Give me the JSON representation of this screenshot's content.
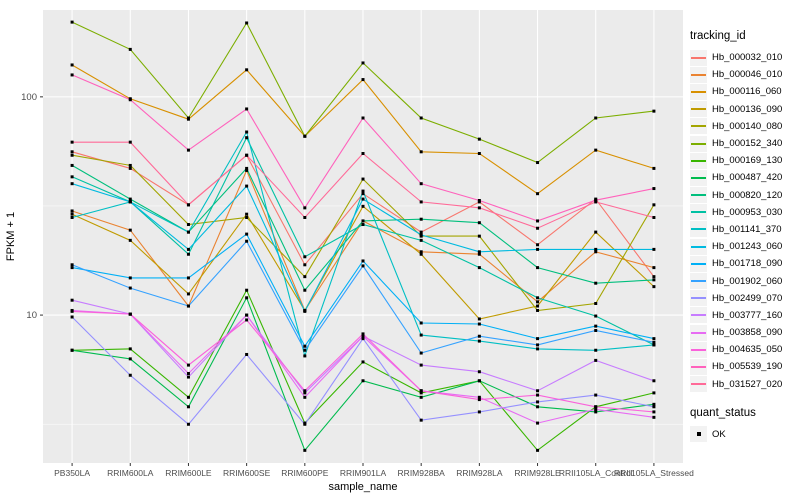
{
  "figure": {
    "y_axis": {
      "title": "FPKM + 1",
      "tick_labels": [
        "100",
        "10"
      ],
      "tick_values": [
        100,
        10
      ]
    },
    "x_axis": {
      "title": "sample_name"
    },
    "legend": {
      "title": "tracking_id",
      "quant_title": "quant_status",
      "quant_items": [
        {
          "label": "OK",
          "marker": "black-square"
        }
      ]
    },
    "panel": {
      "bg": "#EBEBEB",
      "grid_major": "#FFFFFF",
      "grid_minor": "#FFFFFF",
      "text_color": "#4D4D4D"
    }
  },
  "chart_data": {
    "type": "line",
    "title": "",
    "xlabel": "sample_name",
    "ylabel": "FPKM + 1",
    "yscale": "log10",
    "ylim": [
      2.1,
      250
    ],
    "grid": true,
    "legend_position": "right",
    "point_marker": {
      "shape": "square",
      "color": "#000000",
      "size": 3,
      "label": "OK"
    },
    "categories": [
      "PB350LA",
      "RRIM600LA",
      "RRIM600LE",
      "RRIM600SE",
      "RRIM600PE",
      "RRIM901LA",
      "RRIM928BA",
      "RRIM928LA",
      "RRIM928LE",
      "RRII105LA_Control",
      "RRII105LA_Stressed"
    ],
    "series": [
      {
        "name": "Hb_000032_010",
        "color": "#F8766D",
        "values": [
          56,
          47,
          32,
          54,
          17,
          36,
          24,
          33,
          21,
          34,
          15
        ]
      },
      {
        "name": "Hb_000046_010",
        "color": "#EA8331",
        "values": [
          30,
          24.5,
          11,
          46,
          10.5,
          27,
          19.5,
          19,
          11.5,
          19.5,
          16.5
        ]
      },
      {
        "name": "Hb_000116_060",
        "color": "#D89000",
        "values": [
          140,
          98,
          79,
          133,
          66,
          120,
          56,
          55,
          36,
          57,
          47
        ]
      },
      {
        "name": "Hb_000136_090",
        "color": "#C09B00",
        "values": [
          29,
          22,
          12.5,
          29,
          10.5,
          31.5,
          19,
          9.6,
          11,
          24,
          13.5
        ]
      },
      {
        "name": "Hb_000140_080",
        "color": "#A3A500",
        "values": [
          54,
          48.5,
          26,
          28,
          15,
          42,
          23,
          23,
          10.5,
          11.3,
          32
        ]
      },
      {
        "name": "Hb_000152_340",
        "color": "#7CAE00",
        "values": [
          220,
          165,
          80,
          218,
          66,
          143,
          80,
          64,
          50,
          80,
          86
        ]
      },
      {
        "name": "Hb_000169_130",
        "color": "#39B600",
        "values": [
          6.9,
          7.0,
          4.2,
          13,
          3.2,
          6.1,
          4.4,
          5.0,
          2.4,
          3.8,
          4.4
        ]
      },
      {
        "name": "Hb_000487_420",
        "color": "#00BB4E",
        "values": [
          6.9,
          6.3,
          3.8,
          12,
          2.4,
          5.0,
          4.2,
          5.0,
          3.8,
          3.6,
          3.9
        ]
      },
      {
        "name": "Hb_000820_120",
        "color": "#00BF7D",
        "values": [
          48.5,
          34,
          24,
          47,
          13,
          27,
          27.5,
          26.5,
          16.5,
          14,
          14.5
        ]
      },
      {
        "name": "Hb_000953_030",
        "color": "#00C1A3",
        "values": [
          43,
          33,
          19,
          65,
          18.5,
          26,
          22,
          16.5,
          12,
          9.9,
          7.3
        ]
      },
      {
        "name": "Hb_001141_370",
        "color": "#00BFC4",
        "values": [
          28,
          33,
          24,
          69,
          6.5,
          37,
          8.1,
          7.6,
          7.0,
          6.9,
          7.3
        ]
      },
      {
        "name": "Hb_001243_060",
        "color": "#00BAE0",
        "values": [
          40,
          33,
          20,
          39,
          10.4,
          34,
          23.3,
          19.5,
          20,
          20,
          20
        ]
      },
      {
        "name": "Hb_001718_090",
        "color": "#00B0F6",
        "values": [
          16.5,
          14.8,
          14.8,
          23.5,
          7.2,
          17.7,
          9.2,
          9.1,
          7.8,
          8.9,
          7.8
        ]
      },
      {
        "name": "Hb_001902_060",
        "color": "#35A2FF",
        "values": [
          17,
          13.3,
          11,
          21.8,
          6.9,
          16.8,
          6.7,
          8.0,
          7.3,
          8.5,
          7.5
        ]
      },
      {
        "name": "Hb_002499_070",
        "color": "#9590FF",
        "values": [
          9.8,
          5.3,
          3.16,
          6.6,
          3.16,
          7.8,
          3.3,
          3.6,
          4.0,
          4.3,
          3.8
        ]
      },
      {
        "name": "Hb_003777_160",
        "color": "#C77CFF",
        "values": [
          11.7,
          10.1,
          5.2,
          10,
          4.4,
          8.0,
          5.9,
          5.5,
          4.5,
          6.2,
          5.0
        ]
      },
      {
        "name": "Hb_003858_090",
        "color": "#E76BF3",
        "values": [
          10.5,
          10.1,
          5.4,
          10,
          4.2,
          8.0,
          4.5,
          4.2,
          3.2,
          3.7,
          3.4
        ]
      },
      {
        "name": "Hb_004635_050",
        "color": "#FA62DB",
        "values": [
          10.4,
          10.1,
          5.9,
          9.5,
          4.5,
          8.2,
          4.5,
          4.1,
          4.3,
          3.8,
          3.6
        ]
      },
      {
        "name": "Hb_005539_190",
        "color": "#FF62BC",
        "values": [
          126,
          97,
          57,
          88,
          31,
          80,
          40,
          33.5,
          27,
          33.6,
          38
        ]
      },
      {
        "name": "Hb_031527_020",
        "color": "#FF6A98",
        "values": [
          62,
          62,
          32,
          54,
          28,
          55,
          33,
          31,
          25,
          33,
          28
        ]
      }
    ]
  }
}
